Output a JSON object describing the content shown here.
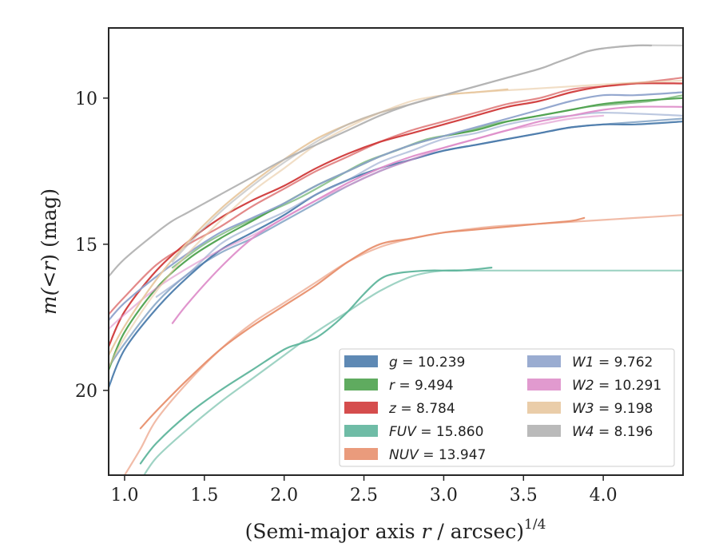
{
  "chart_data": {
    "type": "line",
    "xlabel_main": "(Semi-major axis ",
    "xlabel_var": "r",
    "xlabel_rest": " / arcsec)",
    "xlabel_sup": "1/4",
    "ylabel_prefix": "m(",
    "ylabel_sym": "<",
    "ylabel_var": "r",
    "ylabel_suffix": ") (mag)",
    "xlim": [
      0.9,
      4.5
    ],
    "ylim": [
      22.9,
      7.6
    ],
    "x_ticks": [
      1.0,
      1.5,
      2.0,
      2.5,
      3.0,
      3.5,
      4.0
    ],
    "x_tick_labels": [
      "1.0",
      "1.5",
      "2.0",
      "2.5",
      "3.0",
      "3.5",
      "4.0"
    ],
    "y_ticks": [
      10,
      15,
      20
    ],
    "y_tick_labels": [
      "10",
      "15",
      "20"
    ],
    "y_inverted": true,
    "grid": false,
    "legend_placement": "lower-right",
    "series": [
      {
        "name": "g",
        "value": "10.239",
        "color": "#4c7cac",
        "curves": [
          {
            "x": [
              0.9,
              1.0,
              1.2,
              1.4,
              1.6,
              1.8,
              2.0,
              2.2,
              2.4,
              2.6,
              2.8,
              3.0,
              3.2,
              3.4,
              3.6,
              3.8,
              4.0,
              4.2,
              4.5
            ],
            "y": [
              19.9,
              18.6,
              17.2,
              16.1,
              15.2,
              14.6,
              14.0,
              13.3,
              12.8,
              12.4,
              12.1,
              11.8,
              11.6,
              11.4,
              11.2,
              11.0,
              10.9,
              10.9,
              10.8
            ]
          },
          {
            "x": [
              0.9,
              1.0,
              1.2,
              1.4,
              1.6,
              1.8,
              2.0,
              2.2,
              2.4,
              2.6,
              2.8,
              3.0,
              3.2,
              3.4,
              3.6,
              3.8,
              4.0,
              4.5
            ],
            "y": [
              19.2,
              18.4,
              17.0,
              16.0,
              15.3,
              14.8,
              14.2,
              13.6,
              13.0,
              12.5,
              12.1,
              11.8,
              11.6,
              11.4,
              11.2,
              11.0,
              10.9,
              10.7
            ]
          }
        ]
      },
      {
        "name": "r",
        "value": "9.494",
        "color": "#4ea24e",
        "curves": [
          {
            "x": [
              0.9,
              1.0,
              1.2,
              1.4,
              1.6,
              1.8,
              2.0,
              2.2,
              2.4,
              2.6,
              2.8,
              3.0,
              3.2,
              3.4,
              3.6,
              3.8,
              4.0,
              4.2,
              4.5
            ],
            "y": [
              19.3,
              18.0,
              16.5,
              15.5,
              14.8,
              14.2,
              13.6,
              13.0,
              12.5,
              12.0,
              11.6,
              11.3,
              11.1,
              10.8,
              10.6,
              10.4,
              10.2,
              10.1,
              10.0
            ]
          },
          {
            "x": [
              1.3,
              1.5,
              1.7,
              1.9,
              2.1,
              2.3,
              2.5,
              2.7,
              2.9,
              3.1,
              3.3,
              3.5,
              3.7,
              3.9,
              4.1,
              4.3,
              4.5
            ],
            "y": [
              15.8,
              15.0,
              14.4,
              13.9,
              13.4,
              12.8,
              12.2,
              11.8,
              11.4,
              11.2,
              10.9,
              10.7,
              10.5,
              10.3,
              10.2,
              10.1,
              9.9
            ]
          }
        ]
      },
      {
        "name": "z",
        "value": "8.784",
        "color": "#d03a3a",
        "curves": [
          {
            "x": [
              0.9,
              1.0,
              1.2,
              1.4,
              1.6,
              1.8,
              2.0,
              2.2,
              2.4,
              2.6,
              2.8,
              3.0,
              3.2,
              3.4,
              3.6,
              3.8,
              4.0,
              4.2,
              4.5
            ],
            "y": [
              18.5,
              17.3,
              15.9,
              14.9,
              14.1,
              13.5,
              13.0,
              12.4,
              11.9,
              11.5,
              11.2,
              10.9,
              10.6,
              10.3,
              10.1,
              9.8,
              9.6,
              9.5,
              9.5
            ]
          },
          {
            "x": [
              0.9,
              1.0,
              1.2,
              1.4,
              1.6,
              1.8,
              2.0,
              2.2,
              2.4,
              2.6,
              2.8,
              3.0,
              3.2,
              3.4,
              3.6,
              3.8,
              4.0,
              4.2,
              4.5
            ],
            "y": [
              17.4,
              16.8,
              15.7,
              15.0,
              14.4,
              13.7,
              13.1,
              12.5,
              12.0,
              11.5,
              11.1,
              10.8,
              10.5,
              10.2,
              10.0,
              9.7,
              9.6,
              9.5,
              9.3
            ]
          }
        ]
      },
      {
        "name": "FUV",
        "value": "15.860",
        "color": "#5fb59c",
        "curves": [
          {
            "x": [
              1.1,
              1.2,
              1.4,
              1.6,
              1.8,
              2.0,
              2.1,
              2.2,
              2.3,
              2.4,
              2.5,
              2.6,
              2.7,
              2.9,
              3.1,
              3.3
            ],
            "y": [
              22.5,
              21.8,
              20.8,
              20.0,
              19.3,
              18.6,
              18.4,
              18.2,
              17.8,
              17.3,
              16.7,
              16.2,
              16.0,
              15.9,
              15.9,
              15.8
            ]
          },
          {
            "x": [
              1.1,
              1.2,
              1.4,
              1.6,
              1.8,
              2.0,
              2.2,
              2.4,
              2.6,
              2.8,
              3.0,
              3.2,
              3.5,
              3.8,
              4.1,
              4.5
            ],
            "y": [
              23.1,
              22.3,
              21.3,
              20.4,
              19.6,
              18.8,
              18.0,
              17.3,
              16.6,
              16.1,
              15.9,
              15.9,
              15.9,
              15.9,
              15.9,
              15.9
            ]
          }
        ]
      },
      {
        "name": "NUV",
        "value": "13.947",
        "color": "#e8906e",
        "curves": [
          {
            "x": [
              1.1,
              1.2,
              1.4,
              1.6,
              1.8,
              2.0,
              2.2,
              2.4,
              2.6,
              2.8,
              3.0,
              3.2,
              3.4,
              3.6,
              3.8,
              3.88
            ],
            "y": [
              21.3,
              20.7,
              19.6,
              18.6,
              17.8,
              17.1,
              16.4,
              15.6,
              15.0,
              14.8,
              14.6,
              14.5,
              14.4,
              14.3,
              14.2,
              14.1
            ]
          },
          {
            "x": [
              1.0,
              1.1,
              1.2,
              1.4,
              1.6,
              1.8,
              2.0,
              2.2,
              2.4,
              2.6,
              2.8,
              3.0,
              3.3,
              3.6,
              3.9,
              4.2,
              4.5
            ],
            "y": [
              22.9,
              22.0,
              21.0,
              19.7,
              18.6,
              17.7,
              17.0,
              16.3,
              15.6,
              15.1,
              14.8,
              14.6,
              14.4,
              14.3,
              14.2,
              14.1,
              14.0
            ]
          }
        ]
      },
      {
        "name": "W1",
        "value": "9.762",
        "color": "#8fa3cc",
        "curves": [
          {
            "x": [
              0.9,
              1.0,
              1.2,
              1.4,
              1.6,
              1.8,
              2.0,
              2.2,
              2.4,
              2.6,
              2.8,
              3.0,
              3.2,
              3.4,
              3.6,
              3.8,
              4.0,
              4.2,
              4.5
            ],
            "y": [
              17.6,
              17.0,
              16.1,
              15.3,
              14.6,
              14.1,
              13.6,
              13.0,
              12.5,
              12.0,
              11.6,
              11.3,
              11.0,
              10.7,
              10.4,
              10.1,
              9.9,
              9.9,
              9.8
            ]
          },
          {
            "x": [
              1.2,
              1.4,
              1.6,
              1.8,
              2.0,
              2.2,
              2.4,
              2.6,
              2.8,
              3.0,
              3.2,
              3.4,
              3.6,
              3.8,
              4.0,
              4.5
            ],
            "y": [
              16.8,
              16.0,
              15.0,
              14.4,
              13.9,
              13.3,
              12.8,
              12.2,
              11.8,
              11.4,
              11.2,
              10.9,
              10.7,
              10.6,
              10.5,
              10.6
            ]
          }
        ]
      },
      {
        "name": "W2",
        "value": "10.291",
        "color": "#de8fca",
        "curves": [
          {
            "x": [
              1.3,
              1.4,
              1.6,
              1.8,
              2.0,
              2.2,
              2.4,
              2.6,
              2.8,
              3.0,
              3.2,
              3.4,
              3.6,
              3.8,
              4.0,
              4.2,
              4.5
            ],
            "y": [
              17.7,
              17.0,
              15.8,
              14.8,
              14.1,
              13.5,
              12.9,
              12.4,
              12.0,
              11.7,
              11.4,
              11.1,
              10.8,
              10.6,
              10.4,
              10.3,
              10.3
            ]
          },
          {
            "x": [
              0.9,
              1.0,
              1.2,
              1.4,
              1.6,
              1.8,
              2.0,
              2.2,
              2.4,
              2.6,
              2.8,
              3.0,
              3.2,
              3.4,
              3.6,
              3.8,
              4.0
            ],
            "y": [
              17.9,
              17.4,
              16.5,
              15.8,
              15.2,
              14.7,
              14.1,
              13.5,
              13.0,
              12.5,
              12.1,
              11.7,
              11.4,
              11.1,
              10.9,
              10.7,
              10.6
            ]
          }
        ]
      },
      {
        "name": "W3",
        "value": "9.198",
        "color": "#e8c8a0",
        "curves": [
          {
            "x": [
              0.9,
              1.0,
              1.2,
              1.4,
              1.6,
              1.8,
              2.0,
              2.2,
              2.4,
              2.6,
              2.8,
              3.0,
              3.2,
              3.4
            ],
            "y": [
              18.8,
              17.8,
              16.2,
              14.9,
              13.8,
              12.9,
              12.1,
              11.4,
              10.9,
              10.5,
              10.2,
              9.9,
              9.8,
              9.7
            ]
          },
          {
            "x": [
              0.9,
              1.0,
              1.2,
              1.4,
              1.6,
              1.8,
              2.0,
              2.2,
              2.4,
              2.6,
              2.8,
              3.0,
              3.2,
              3.5,
              3.8,
              4.1,
              4.5
            ],
            "y": [
              19.2,
              18.2,
              16.6,
              15.3,
              14.2,
              13.2,
              12.4,
              11.6,
              11.0,
              10.5,
              10.1,
              9.9,
              9.8,
              9.7,
              9.6,
              9.5,
              9.4
            ]
          }
        ]
      },
      {
        "name": "W4",
        "value": "8.196",
        "color": "#b3b3b3",
        "curves": [
          {
            "x": [
              0.9,
              1.0,
              1.2,
              1.3,
              1.4,
              1.6,
              1.8,
              2.0,
              2.2,
              2.4,
              2.6,
              2.8,
              3.0,
              3.2,
              3.4,
              3.6,
              3.7,
              3.8,
              3.9,
              4.0,
              4.2,
              4.3
            ],
            "y": [
              16.1,
              15.5,
              14.6,
              14.2,
              13.9,
              13.3,
              12.7,
              12.1,
              11.6,
              11.1,
              10.6,
              10.2,
              9.9,
              9.6,
              9.3,
              9.0,
              8.8,
              8.6,
              8.4,
              8.3,
              8.2,
              8.2
            ]
          },
          {
            "x": [
              1.3,
              1.4,
              1.6,
              1.8,
              2.0,
              2.2,
              2.4,
              2.6,
              2.8,
              3.0,
              3.2,
              3.4,
              3.6,
              3.7,
              3.8,
              3.9,
              4.0,
              4.2,
              4.5
            ],
            "y": [
              15.6,
              15.0,
              13.9,
              13.0,
              12.2,
              11.5,
              10.9,
              10.5,
              10.2,
              9.9,
              9.6,
              9.3,
              9.0,
              8.8,
              8.6,
              8.4,
              8.3,
              8.2,
              8.2
            ]
          }
        ]
      }
    ]
  }
}
